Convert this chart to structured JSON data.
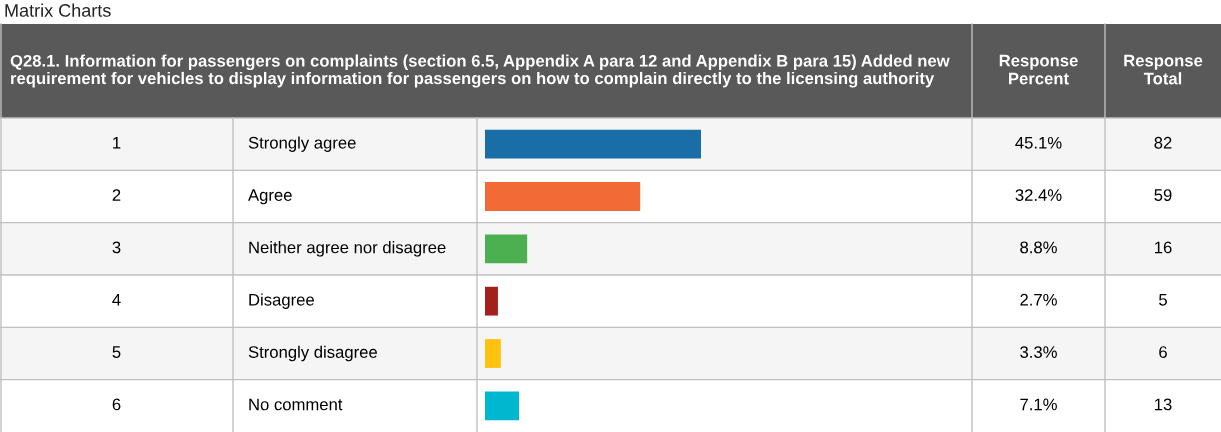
{
  "chart_data": {
    "type": "bar",
    "orientation": "horizontal",
    "title": "Matrix Charts",
    "subtitle": "Q28.1. Information for passengers on complaints (section 6.5, Appendix A para 12 and Appendix B para 15) Added new requirement for vehicles to display information for passengers on how to complain directly to the licensing authority",
    "categories": [
      "Strongly agree",
      "Agree",
      "Neither agree nor disagree",
      "Disagree",
      "Strongly disagree",
      "No comment"
    ],
    "values": [
      45.1,
      32.4,
      8.8,
      2.7,
      3.3,
      7.1
    ],
    "colors": [
      "#1a6ea8",
      "#f26a35",
      "#4caf50",
      "#a4201d",
      "#ffc20e",
      "#00b7d0"
    ],
    "value_labels": [
      "45.1%",
      "32.4%",
      "8.8%",
      "2.7%",
      "3.3%",
      "7.1%"
    ],
    "tick_labels": false,
    "annotations": [
      "Response Percent",
      "Response Total",
      "1",
      "2",
      "3",
      "4",
      "5",
      "6",
      "82",
      "59",
      "16",
      "5",
      "6",
      "13"
    ]
  }
}
